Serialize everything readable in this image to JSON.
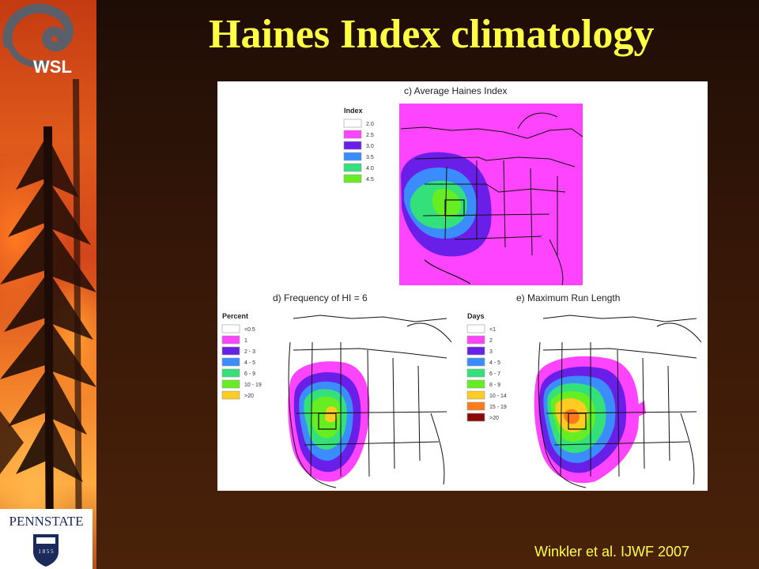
{
  "slide": {
    "title": "Haines Index climatology",
    "citation": "Winkler et al. IJWF 2007"
  },
  "logos": {
    "top_logo_text": "WSL",
    "bottom_logo_wordmark": "PENNSTATE",
    "bottom_logo_year": "1 8 5 5"
  },
  "figure": {
    "panels": [
      {
        "id": "c",
        "title": "c) Average Haines Index",
        "legend_title": "Index",
        "legend": [
          {
            "label": "2.0",
            "color": "#ffffff"
          },
          {
            "label": "2.5",
            "color": "#ff44ff"
          },
          {
            "label": "3.0",
            "color": "#6a1fe8"
          },
          {
            "label": "3.5",
            "color": "#3a8cff"
          },
          {
            "label": "4.0",
            "color": "#33e07a"
          },
          {
            "label": "4.5",
            "color": "#66ee22"
          }
        ]
      },
      {
        "id": "d",
        "title": "d) Frequency of HI = 6",
        "legend_title": "Percent",
        "legend": [
          {
            "label": "<0.5",
            "color": "#ffffff"
          },
          {
            "label": "1",
            "color": "#ff44ff"
          },
          {
            "label": "2 - 3",
            "color": "#6a1fe8"
          },
          {
            "label": "4 - 5",
            "color": "#3a8cff"
          },
          {
            "label": "6 - 9",
            "color": "#33e07a"
          },
          {
            "label": "10 - 19",
            "color": "#66ee22"
          },
          {
            "label": ">20",
            "color": "#ffcc22"
          }
        ]
      },
      {
        "id": "e",
        "title": "e) Maximum Run Length",
        "legend_title": "Days",
        "legend": [
          {
            "label": "<1",
            "color": "#ffffff"
          },
          {
            "label": "2",
            "color": "#ff44ff"
          },
          {
            "label": "3",
            "color": "#6a1fe8"
          },
          {
            "label": "4 - 5",
            "color": "#3a8cff"
          },
          {
            "label": "6 - 7",
            "color": "#33e07a"
          },
          {
            "label": "8 - 9",
            "color": "#66ee22"
          },
          {
            "label": "10 - 14",
            "color": "#ffcc22"
          },
          {
            "label": "15 - 19",
            "color": "#ff7a1a"
          },
          {
            "label": ">20",
            "color": "#8a0a0a"
          }
        ]
      }
    ]
  }
}
